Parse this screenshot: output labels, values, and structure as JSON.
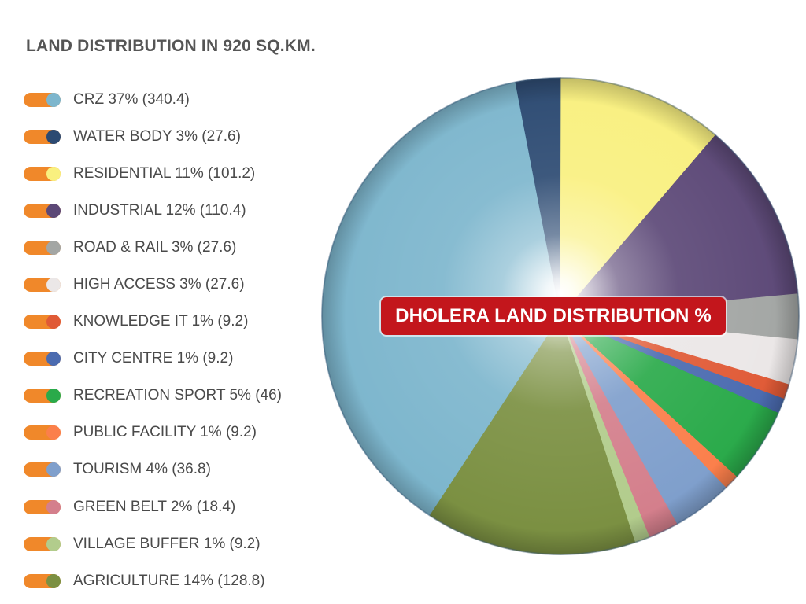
{
  "page": {
    "heading": "LAND DISTRIBUTION IN 920 SQ.KM."
  },
  "chart_data": {
    "type": "pie",
    "title": "DHOLERA LAND DISTRIBUTION %",
    "total_area_label": "920 SQ.KM.",
    "legend_placement": "left",
    "slices": [
      {
        "label": "CRZ",
        "percent": 37,
        "area": 340.4,
        "color": "#7db6cd",
        "legend_text": "CRZ 37% (340.4)"
      },
      {
        "label": "WATER BODY",
        "percent": 3,
        "area": 27.6,
        "color": "#2c4a72",
        "legend_text": "WATER BODY 3% (27.6)"
      },
      {
        "label": "RESIDENTIAL",
        "percent": 11,
        "area": 101.2,
        "color": "#f9f07f",
        "legend_text": "RESIDENTIAL 11% (101.2)"
      },
      {
        "label": "INDUSTRIAL",
        "percent": 12,
        "area": 110.4,
        "color": "#5c4877",
        "legend_text": "INDUSTRIAL 12% (110.4)"
      },
      {
        "label": "ROAD & RAIL",
        "percent": 3,
        "area": 27.6,
        "color": "#a3a6a4",
        "legend_text": "ROAD & RAIL 3% (27.6)"
      },
      {
        "label": "HIGH ACCESS",
        "percent": 3,
        "area": 27.6,
        "color": "#ebe7e7",
        "legend_text": "HIGH ACCESS 3% (27.6)"
      },
      {
        "label": "KNOWLEDGE IT",
        "percent": 1,
        "area": 9.2,
        "color": "#e05a36",
        "legend_text": "KNOWLEDGE IT 1% (9.2)"
      },
      {
        "label": "CITY CENTRE",
        "percent": 1,
        "area": 9.2,
        "color": "#4b6bb0",
        "legend_text": "CITY CENTRE 1% (9.2)"
      },
      {
        "label": "RECREATION SPORT",
        "percent": 5,
        "area": 46,
        "color": "#2aaa4a",
        "legend_text": "RECREATION SPORT 5% (46)"
      },
      {
        "label": "PUBLIC FACILITY",
        "percent": 1,
        "area": 9.2,
        "color": "#fb7f4b",
        "legend_text": "PUBLIC FACILITY 1% (9.2)"
      },
      {
        "label": "TOURISM",
        "percent": 4,
        "area": 36.8,
        "color": "#7f9fcc",
        "legend_text": "TOURISM 4% (36.8)"
      },
      {
        "label": "GREEN BELT",
        "percent": 2,
        "area": 18.4,
        "color": "#d47f8c",
        "legend_text": "GREEN BELT 2% (18.4)"
      },
      {
        "label": "VILLAGE BUFFER",
        "percent": 1,
        "area": 9.2,
        "color": "#b2cc8c",
        "legend_text": "VILLAGE BUFFER 1% (9.2)"
      },
      {
        "label": "AGRICULTURE",
        "percent": 14,
        "area": 128.8,
        "color": "#7b9042",
        "legend_text": "AGRICULTURE 14% (128.8)"
      }
    ]
  },
  "theme": {
    "toggle_color": "#f0882a",
    "badge_color": "#c3161c",
    "text_color": "#4a4a4a"
  }
}
